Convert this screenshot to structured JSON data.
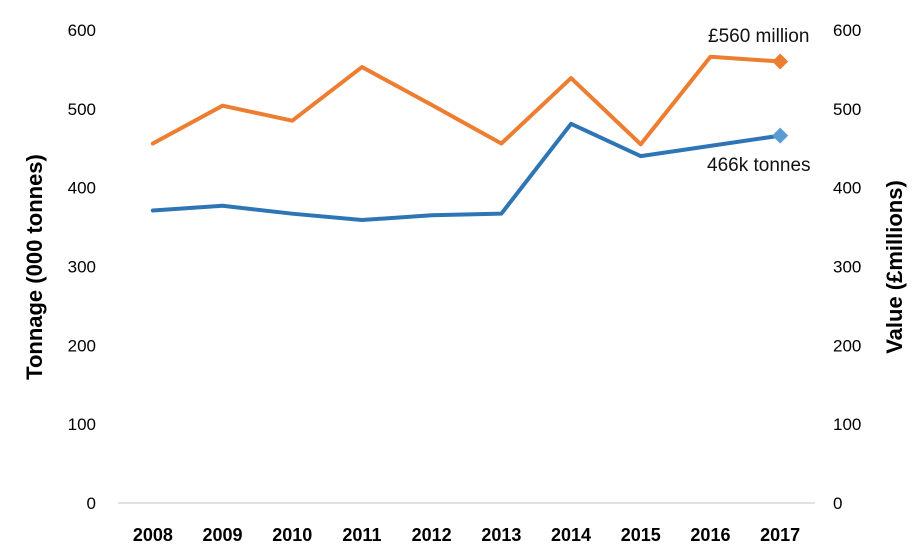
{
  "chart_data": {
    "type": "line",
    "categories": [
      "2008",
      "2009",
      "2010",
      "2011",
      "2012",
      "2013",
      "2014",
      "2015",
      "2016",
      "2017"
    ],
    "series": [
      {
        "axis": "left",
        "color": "#2e75b6",
        "marker_color": "#5b9bd5",
        "values": [
          371,
          377,
          367,
          359,
          365,
          367,
          481,
          440,
          453,
          466
        ]
      },
      {
        "axis": "right",
        "color": "#ed7d31",
        "marker_color": "#ed7d31",
        "values": [
          456,
          504,
          485,
          553,
          505,
          456,
          539,
          455,
          566,
          560
        ]
      }
    ],
    "ylabel_left": "Tonnage (000 tonnes)",
    "ylabel_right": "Value (£millions)",
    "ylim_left": [
      0,
      600
    ],
    "ylim_right": [
      0,
      600
    ],
    "yticks_left": [
      "0",
      "100",
      "200",
      "300",
      "400",
      "500",
      "600"
    ],
    "yticks_right": [
      "0",
      "100",
      "200",
      "300",
      "400",
      "500",
      "600"
    ],
    "grid": false,
    "annotations": {
      "value_end": "£560 million",
      "tonnage_end": "466k tonnes"
    }
  }
}
